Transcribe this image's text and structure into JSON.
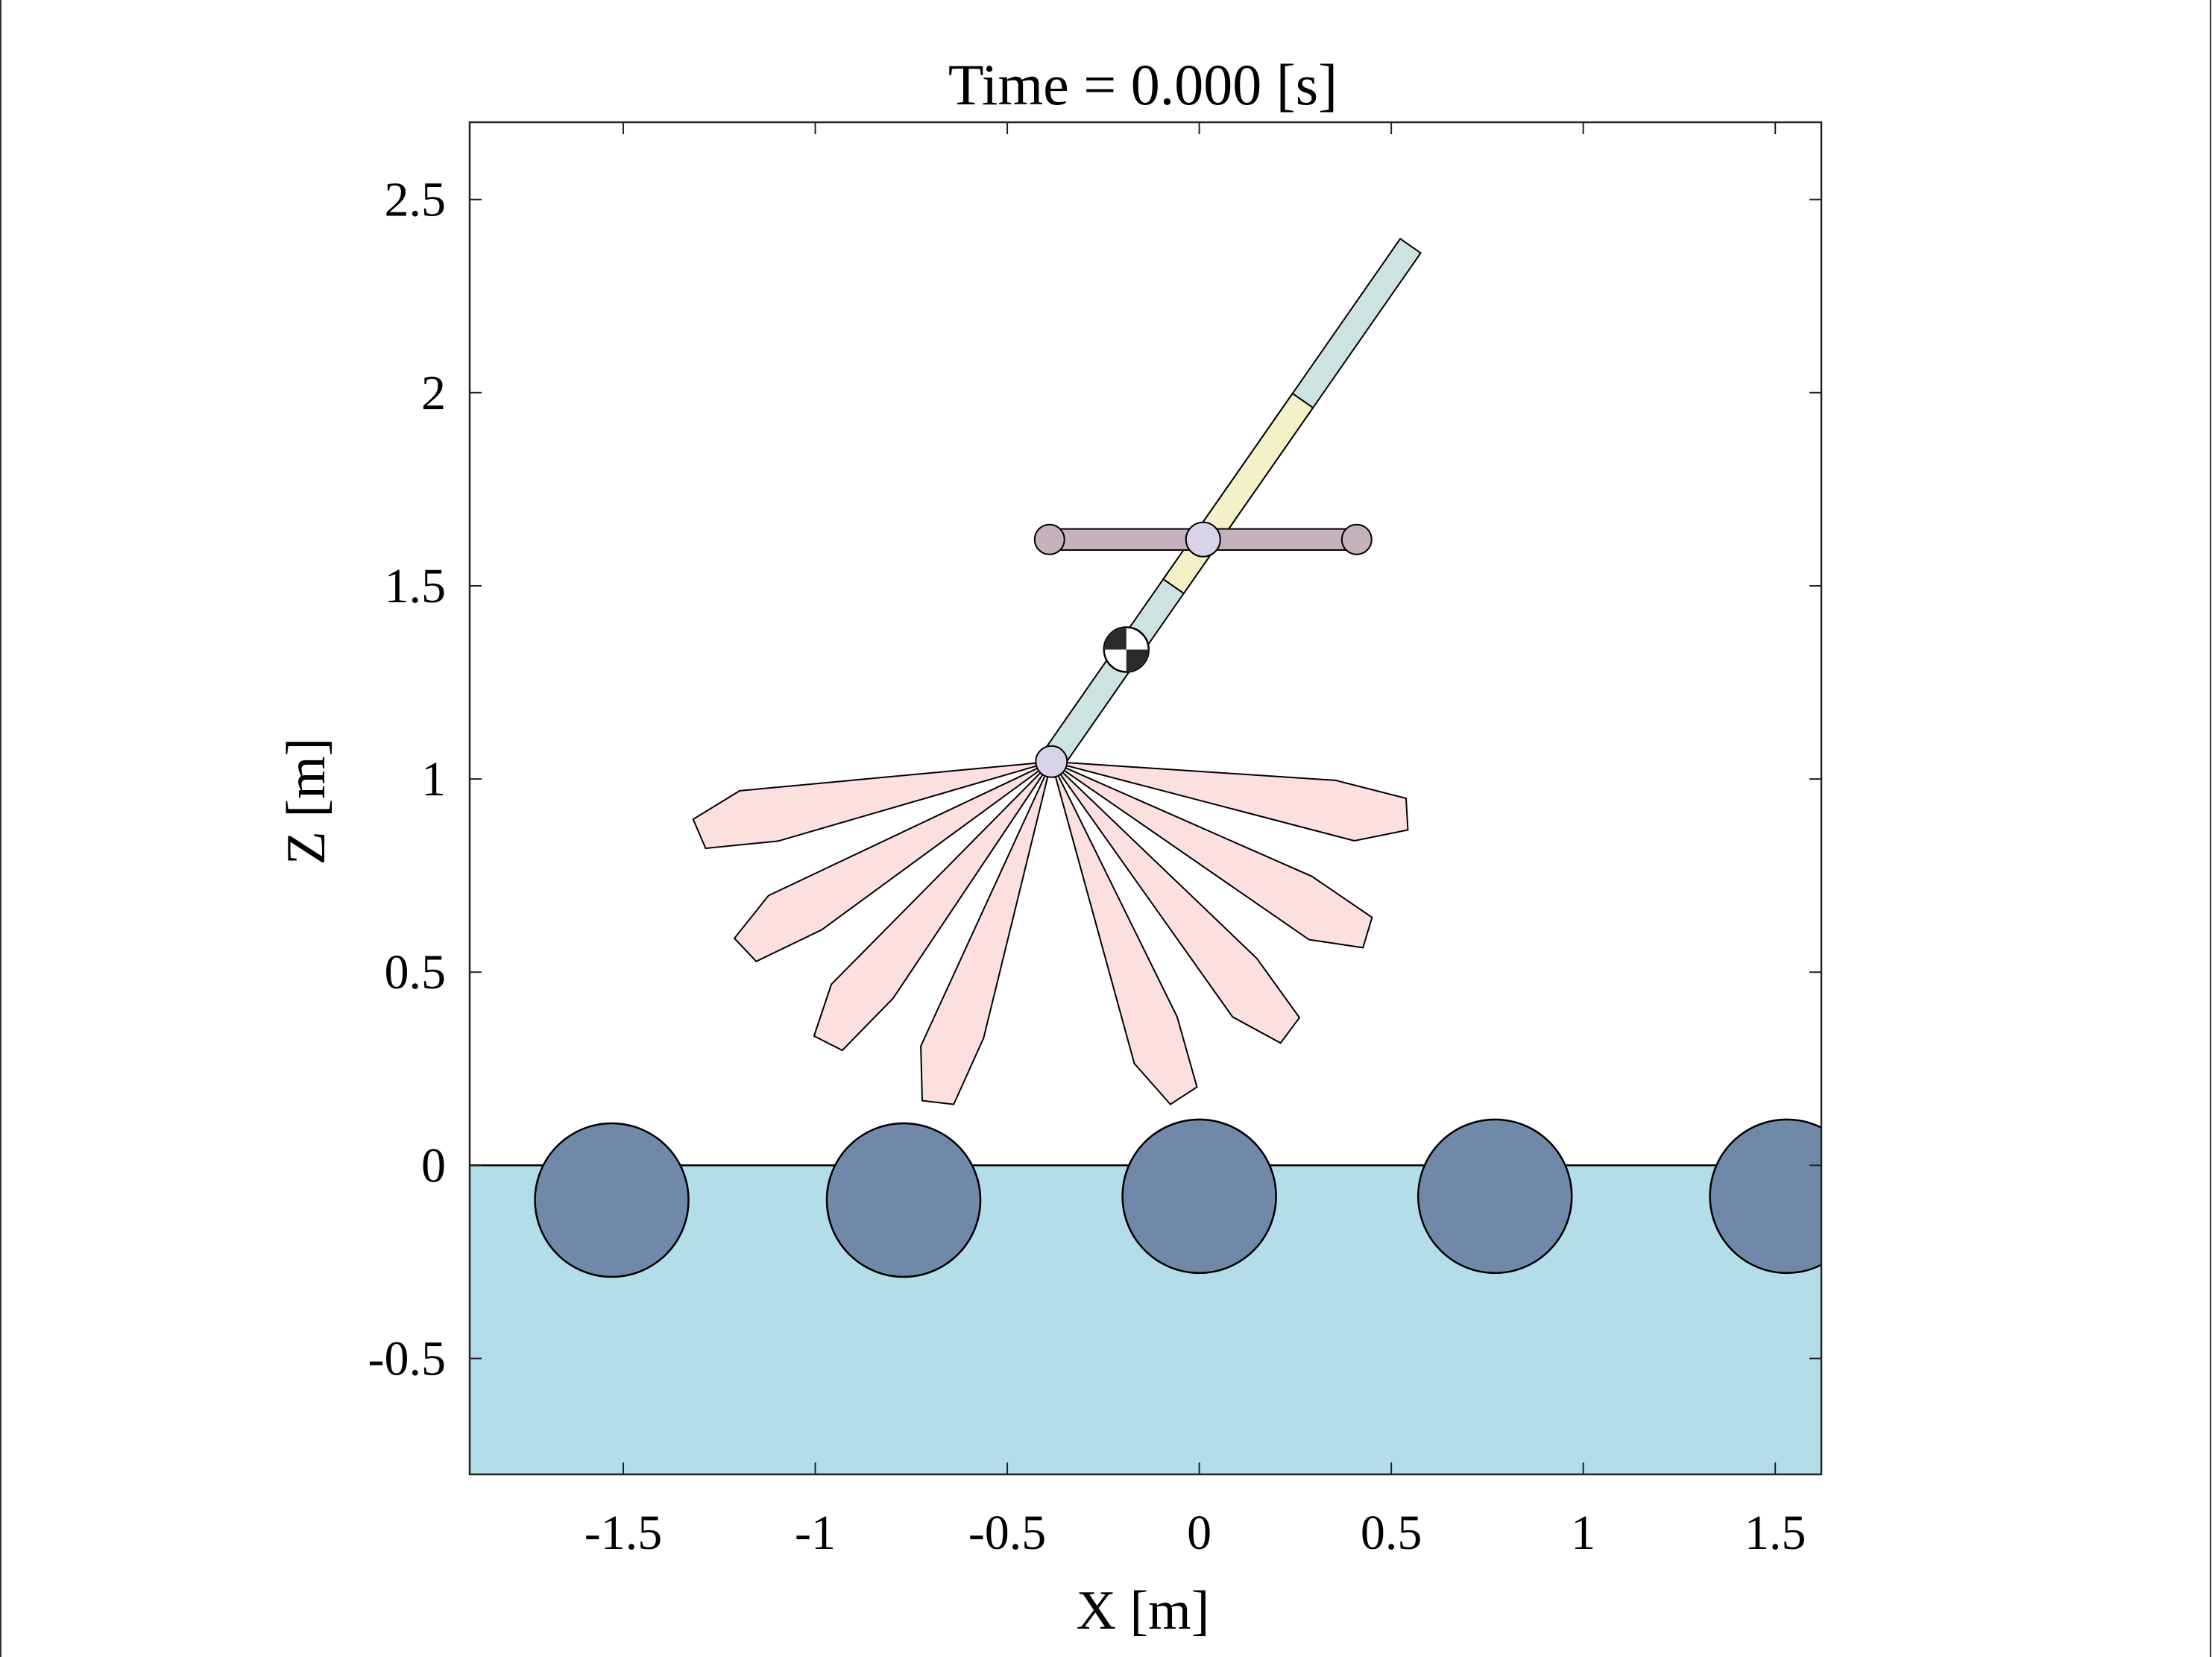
{
  "title": "Time = 0.000 [s]",
  "xlabel": "X [m]",
  "ylabel": "Z [m]",
  "axes": {
    "xlim": [
      -1.9,
      1.62
    ],
    "ylim": [
      -0.8,
      2.7
    ],
    "xticks": [
      {
        "value": -1.5,
        "label": "-1.5"
      },
      {
        "value": -1,
        "label": "-1"
      },
      {
        "value": -0.5,
        "label": "-0.5"
      },
      {
        "value": 0,
        "label": "0"
      },
      {
        "value": 0.5,
        "label": "0.5"
      },
      {
        "value": 1,
        "label": "1"
      },
      {
        "value": 1.5,
        "label": "1.5"
      }
    ],
    "yticks": [
      {
        "value": -0.5,
        "label": "-0.5"
      },
      {
        "value": 0,
        "label": "0"
      },
      {
        "value": 0.5,
        "label": "0.5"
      },
      {
        "value": 1,
        "label": "1"
      },
      {
        "value": 1.5,
        "label": "1.5"
      },
      {
        "value": 2,
        "label": "2"
      },
      {
        "value": 2.5,
        "label": "2.5"
      }
    ]
  },
  "colors": {
    "water": "#b3dde9",
    "wheel": "#7089a8",
    "spoke": "#fce0e0",
    "pole": "#cde3e1",
    "pole_mid": "#f4f0c8",
    "arm": "#c6b2bc",
    "joint": "#d8d3e6",
    "outline": "#000000"
  },
  "scene": {
    "water_level": 0,
    "wheels": [
      {
        "x": -1.53,
        "z": -0.09,
        "r": 0.2
      },
      {
        "x": -0.77,
        "z": -0.09,
        "r": 0.2
      },
      {
        "x": 0.0,
        "z": -0.08,
        "r": 0.2
      },
      {
        "x": 0.77,
        "z": -0.08,
        "r": 0.2
      },
      {
        "x": 1.53,
        "z": -0.08,
        "r": 0.2
      }
    ],
    "hub": {
      "x": -0.385,
      "z": 1.045
    },
    "spoke_angles_deg": [
      -80,
      -60,
      -40,
      -20,
      20,
      40,
      60,
      80
    ],
    "spoke_length": 0.945,
    "pole": {
      "start": [
        -0.385,
        1.045
      ],
      "end": [
        0.55,
        2.38
      ],
      "width": 0.065
    },
    "pole_mid_segment": [
      0.34,
      0.7
    ],
    "com": {
      "x": -0.19,
      "z": 1.335
    },
    "arm": {
      "z": 1.62,
      "x1": -0.39,
      "x2": 0.41,
      "joint_x": 0.01
    }
  }
}
